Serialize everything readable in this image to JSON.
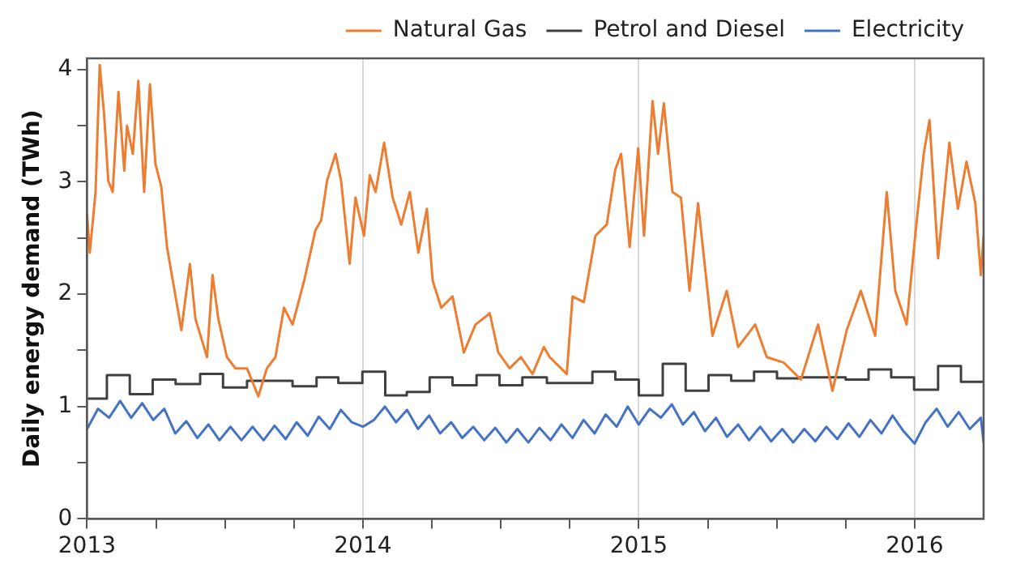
{
  "chart_data": {
    "type": "line",
    "ylabel": "Daily energy demand (TWh)",
    "legend": "top right",
    "grid": "x",
    "marker": "none",
    "xlim": [
      2013,
      2016.25
    ],
    "xticks": [
      2013,
      {
        "value": 2013.25,
        "label": null
      },
      {
        "value": 2013.5,
        "label": null
      },
      {
        "value": 2013.75,
        "label": null
      },
      2014,
      {
        "value": 2014.25,
        "label": null
      },
      {
        "value": 2014.5,
        "label": null
      },
      {
        "value": 2014.75,
        "label": null
      },
      2015,
      {
        "value": 2015.25,
        "label": null
      },
      {
        "value": 2015.5,
        "label": null
      },
      {
        "value": 2015.75,
        "label": null
      },
      2016
    ],
    "ylim": [
      0,
      4.1
    ],
    "yticks": [
      0,
      {
        "value": 0.5,
        "label": null
      },
      1,
      {
        "value": 1.5,
        "label": null
      },
      2,
      {
        "value": 2.5,
        "label": null
      },
      3,
      {
        "value": 3.5,
        "label": null
      },
      4
    ],
    "series": [
      {
        "name": "Natural Gas",
        "color": "#ed7d31",
        "x": [
          2013,
          2013.01,
          2013.031,
          2013.046,
          2013.062,
          2013.077,
          2013.093,
          2013.114,
          2013.135,
          2013.145,
          2013.166,
          2013.186,
          2013.207,
          2013.228,
          2013.248,
          2013.269,
          2013.29,
          2013.311,
          2013.342,
          2013.373,
          2013.393,
          2013.435,
          2013.455,
          2013.476,
          2013.507,
          2013.538,
          2013.58,
          2013.621,
          2013.652,
          2013.683,
          2013.714,
          2013.745,
          2013.787,
          2013.828,
          2013.849,
          2013.87,
          2013.901,
          2013.921,
          2013.952,
          2013.973,
          2014.004,
          2014.025,
          2014.046,
          2014.077,
          2014.108,
          2014.139,
          2014.17,
          2014.201,
          2014.232,
          2014.253,
          2014.284,
          2014.325,
          2014.366,
          2014.408,
          2014.46,
          2014.491,
          2014.532,
          2014.573,
          2014.615,
          2014.656,
          2014.677,
          2014.739,
          2014.76,
          2014.801,
          2014.843,
          2014.884,
          2014.915,
          2014.936,
          2014.967,
          2014.998,
          2015.019,
          2015.05,
          2015.07,
          2015.091,
          2015.122,
          2015.153,
          2015.184,
          2015.215,
          2015.267,
          2015.319,
          2015.36,
          2015.422,
          2015.464,
          2015.526,
          2015.588,
          2015.65,
          2015.702,
          2015.754,
          2015.805,
          2015.857,
          2015.899,
          2015.93,
          2015.971,
          2016.002,
          2016.033,
          2016.054,
          2016.085,
          2016.126,
          2016.157,
          2016.188,
          2016.22,
          2016.24,
          2016.25
        ],
        "values": [
          2.71,
          2.37,
          2.91,
          4.04,
          3.6,
          3.01,
          2.91,
          3.8,
          3.1,
          3.5,
          3.25,
          3.9,
          2.91,
          3.87,
          3.16,
          2.96,
          2.42,
          2.12,
          1.68,
          2.27,
          1.78,
          1.44,
          2.17,
          1.78,
          1.44,
          1.34,
          1.34,
          1.09,
          1.34,
          1.44,
          1.88,
          1.73,
          2.12,
          2.57,
          2.66,
          3.01,
          3.25,
          3.01,
          2.27,
          2.86,
          2.52,
          3.06,
          2.91,
          3.35,
          2.86,
          2.62,
          2.91,
          2.37,
          2.76,
          2.12,
          1.88,
          1.98,
          1.48,
          1.73,
          1.83,
          1.48,
          1.34,
          1.44,
          1.29,
          1.53,
          1.44,
          1.29,
          1.98,
          1.93,
          2.52,
          2.62,
          3.11,
          3.25,
          2.42,
          3.3,
          2.52,
          3.72,
          3.25,
          3.7,
          2.91,
          2.86,
          2.03,
          2.81,
          1.63,
          2.03,
          1.53,
          1.73,
          1.44,
          1.39,
          1.24,
          1.73,
          1.14,
          1.68,
          2.03,
          1.63,
          2.91,
          2.03,
          1.73,
          2.52,
          3.25,
          3.55,
          2.32,
          3.35,
          2.76,
          3.18,
          2.81,
          2.17,
          2.52
        ]
      },
      {
        "name": "Petrol and Diesel",
        "color": "#404040",
        "type": "step",
        "x": [
          2013,
          2013.072,
          2013.155,
          2013.238,
          2013.321,
          2013.41,
          2013.493,
          2013.58,
          2013.745,
          2013.832,
          2013.911,
          2013.998,
          2014.081,
          2014.159,
          2014.242,
          2014.325,
          2014.412,
          2014.495,
          2014.578,
          2014.667,
          2014.832,
          2014.915,
          2015.0,
          2015.087,
          2015.17,
          2015.253,
          2015.335,
          2015.418,
          2015.501,
          2015.584,
          2015.75,
          2015.833,
          2015.915,
          2015.998,
          2016.085,
          2016.168,
          2016.25
        ],
        "values": [
          1.07,
          1.28,
          1.11,
          1.24,
          1.2,
          1.29,
          1.17,
          1.23,
          1.18,
          1.26,
          1.21,
          1.31,
          1.1,
          1.13,
          1.26,
          1.19,
          1.28,
          1.19,
          1.26,
          1.21,
          1.31,
          1.24,
          1.1,
          1.38,
          1.14,
          1.28,
          1.23,
          1.31,
          1.25,
          1.26,
          1.24,
          1.33,
          1.26,
          1.15,
          1.36,
          1.22,
          1.22
        ]
      },
      {
        "name": "Electricity",
        "color": "#4472c4",
        "x": [
          2013,
          2013.04,
          2013.08,
          2013.12,
          2013.16,
          2013.2,
          2013.24,
          2013.28,
          2013.32,
          2013.36,
          2013.4,
          2013.44,
          2013.48,
          2013.52,
          2013.56,
          2013.6,
          2013.64,
          2013.68,
          2013.72,
          2013.76,
          2013.8,
          2013.84,
          2013.88,
          2013.92,
          2013.96,
          2014,
          2014.04,
          2014.08,
          2014.12,
          2014.16,
          2014.2,
          2014.24,
          2014.28,
          2014.32,
          2014.36,
          2014.4,
          2014.44,
          2014.48,
          2014.52,
          2014.56,
          2014.6,
          2014.64,
          2014.68,
          2014.72,
          2014.76,
          2014.8,
          2014.84,
          2014.88,
          2014.92,
          2014.96,
          2015,
          2015.04,
          2015.08,
          2015.12,
          2015.16,
          2015.2,
          2015.24,
          2015.28,
          2015.32,
          2015.36,
          2015.4,
          2015.44,
          2015.48,
          2015.52,
          2015.56,
          2015.6,
          2015.64,
          2015.68,
          2015.72,
          2015.76,
          2015.8,
          2015.84,
          2015.88,
          2015.92,
          2015.96,
          2016,
          2016.04,
          2016.08,
          2016.12,
          2016.16,
          2016.2,
          2016.24,
          2016.25
        ],
        "values": [
          0.8,
          0.98,
          0.9,
          1.05,
          0.9,
          1.03,
          0.88,
          0.98,
          0.76,
          0.87,
          0.72,
          0.84,
          0.7,
          0.82,
          0.7,
          0.82,
          0.7,
          0.83,
          0.71,
          0.86,
          0.74,
          0.91,
          0.8,
          0.97,
          0.86,
          0.82,
          0.88,
          1.0,
          0.86,
          0.97,
          0.8,
          0.92,
          0.76,
          0.86,
          0.72,
          0.82,
          0.7,
          0.81,
          0.68,
          0.8,
          0.68,
          0.81,
          0.7,
          0.84,
          0.72,
          0.88,
          0.76,
          0.93,
          0.82,
          1.0,
          0.84,
          0.98,
          0.9,
          1.02,
          0.84,
          0.95,
          0.78,
          0.9,
          0.73,
          0.84,
          0.7,
          0.82,
          0.69,
          0.8,
          0.68,
          0.8,
          0.69,
          0.82,
          0.71,
          0.85,
          0.73,
          0.88,
          0.76,
          0.92,
          0.78,
          0.67,
          0.86,
          0.98,
          0.82,
          0.95,
          0.8,
          0.9,
          0.68
        ]
      }
    ]
  }
}
